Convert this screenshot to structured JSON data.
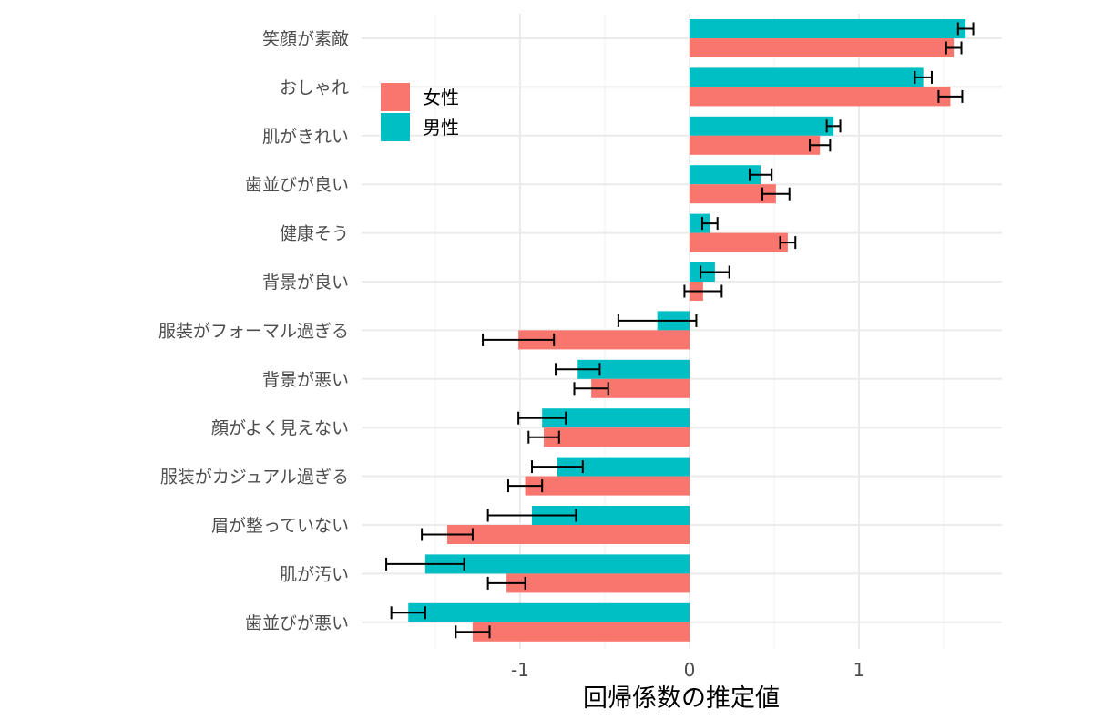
{
  "chart_data": {
    "type": "bar",
    "orientation": "horizontal",
    "title": "",
    "xlabel": "回帰係数の推定値",
    "ylabel": "",
    "xlim": [
      -1.94,
      1.85
    ],
    "xticks": [
      -1,
      0,
      1
    ],
    "xtick_labels": [
      "-1",
      "0",
      "1"
    ],
    "grid": true,
    "legend": {
      "placement": "top-left-inside",
      "entries": [
        "女性",
        "男性"
      ]
    },
    "colors": {
      "女性": "#F8766D",
      "男性": "#00BFC4"
    },
    "categories": [
      "笑顔が素敵",
      "おしゃれ",
      "肌がきれい",
      "歯並びが良い",
      "健康そう",
      "背景が良い",
      "服装がフォーマル過ぎる",
      "背景が悪い",
      "顔がよく見えない",
      "服装がカジュアル過ぎる",
      "眉が整っていない",
      "肌が汚い",
      "歯並びが悪い"
    ],
    "series": [
      {
        "name": "男性",
        "values": [
          1.63,
          1.38,
          0.85,
          0.42,
          0.12,
          0.15,
          -0.19,
          -0.66,
          -0.87,
          -0.78,
          -0.93,
          -1.56,
          -1.66
        ],
        "errors": [
          0.045,
          0.05,
          0.04,
          0.065,
          0.045,
          0.085,
          0.23,
          0.13,
          0.14,
          0.15,
          0.26,
          0.23,
          0.1
        ]
      },
      {
        "name": "女性",
        "values": [
          1.56,
          1.54,
          0.77,
          0.51,
          0.58,
          0.08,
          -1.01,
          -0.58,
          -0.86,
          -0.97,
          -1.43,
          -1.08,
          -1.28
        ],
        "errors": [
          0.045,
          0.07,
          0.06,
          0.08,
          0.045,
          0.11,
          0.21,
          0.1,
          0.09,
          0.1,
          0.15,
          0.11,
          0.1
        ]
      }
    ]
  }
}
